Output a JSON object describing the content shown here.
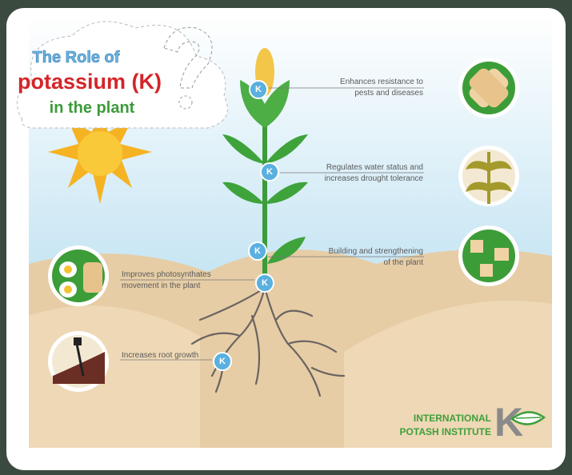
{
  "title": {
    "line1": "The Role of",
    "line2": "potassium (K)",
    "line3": "in the plant"
  },
  "annotations": [
    {
      "marker": "K",
      "lines": [
        "Enhances resistance to",
        "pests and diseases"
      ]
    },
    {
      "marker": "K",
      "lines": [
        "Regulates water status and",
        "increases drought tolerance"
      ]
    },
    {
      "marker": "K",
      "lines": [
        "Building and strengthening",
        "of the plant"
      ]
    },
    {
      "marker": "K",
      "lines": [
        "Improves photosynthates",
        "movement in the plant"
      ]
    },
    {
      "marker": "K",
      "lines": [
        "Increases root growth"
      ]
    }
  ],
  "logo": {
    "line1": "INTERNATIONAL",
    "line2": "POTASH INSTITUTE",
    "mark": "K"
  }
}
